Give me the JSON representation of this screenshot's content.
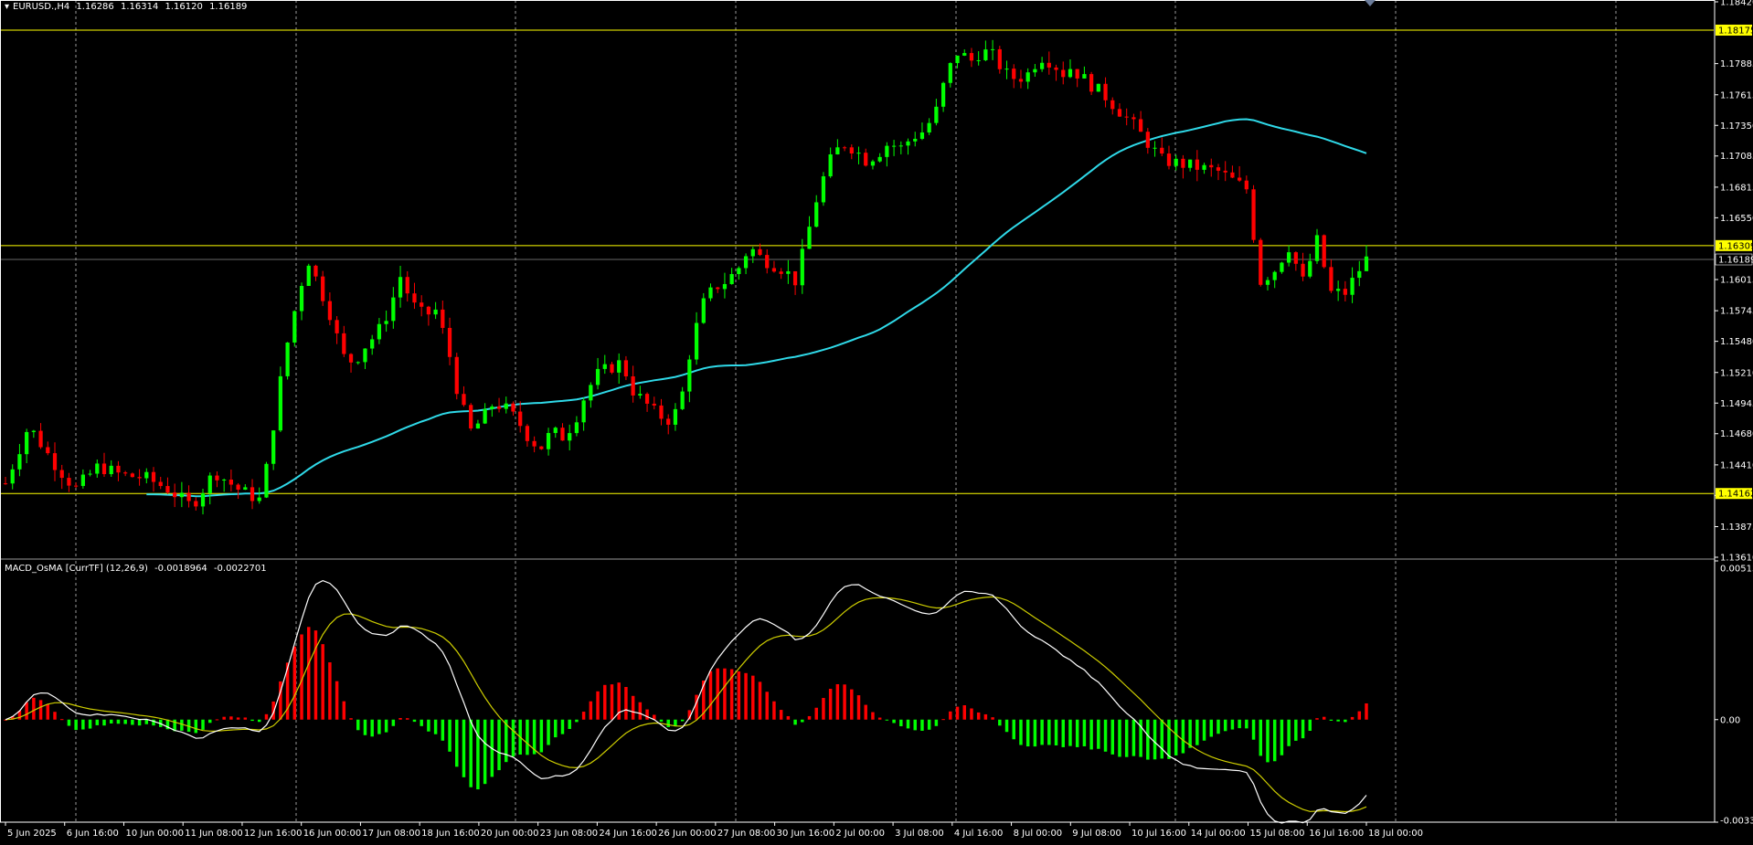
{
  "main_chart": {
    "symbol": "EURUSD.,H4",
    "ohlc": [
      "1.16286",
      "1.16314",
      "1.16120",
      "1.16189"
    ],
    "ylim": [
      1.1361,
      1.1842
    ],
    "price_scale": [
      "1.18420",
      "1.17885",
      "1.17615",
      "1.17350",
      "1.17085",
      "1.16815",
      "1.16550",
      "1.16015",
      "1.15745",
      "1.15480",
      "1.15210",
      "1.14945",
      "1.14680",
      "1.14410",
      "1.14145",
      "1.13875",
      "1.13610"
    ],
    "levels": [
      {
        "price": 1.18175,
        "label": "1.18175",
        "color": "#ffff00"
      },
      {
        "price": 1.16309,
        "label": "1.16309",
        "color": "#ffff00"
      },
      {
        "price": 1.14162,
        "label": "1.14162",
        "color": "#ffff00"
      }
    ],
    "current_price": {
      "price": 1.16189,
      "label": "1.16189"
    },
    "bull_color": "#00ff00",
    "bear_color": "#ff0000",
    "ma_color": "#2fd9e8"
  },
  "chart_data": [
    {
      "type": "candlestick",
      "bars": 194,
      "ylim": [
        1.1361,
        1.1842
      ],
      "trend_anchors_close": [
        [
          0,
          1.1425
        ],
        [
          4,
          1.1475
        ],
        [
          8,
          1.1445
        ],
        [
          12,
          1.142
        ],
        [
          16,
          1.144
        ],
        [
          20,
          1.1432
        ],
        [
          24,
          1.143
        ],
        [
          28,
          1.142
        ],
        [
          32,
          1.1405
        ],
        [
          36,
          1.1435
        ],
        [
          40,
          1.142
        ],
        [
          44,
          1.141
        ],
        [
          48,
          1.1535
        ],
        [
          50,
          1.158
        ],
        [
          52,
          1.162
        ],
        [
          54,
          1.1595
        ],
        [
          56,
          1.157
        ],
        [
          58,
          1.1535
        ],
        [
          60,
          1.153
        ],
        [
          62,
          1.1545
        ],
        [
          64,
          1.1555
        ],
        [
          66,
          1.1575
        ],
        [
          68,
          1.1605
        ],
        [
          70,
          1.158
        ],
        [
          72,
          1.157
        ],
        [
          74,
          1.1575
        ],
        [
          76,
          1.1545
        ],
        [
          78,
          1.15
        ],
        [
          80,
          1.147
        ],
        [
          82,
          1.148
        ],
        [
          84,
          1.1495
        ],
        [
          86,
          1.149
        ],
        [
          88,
          1.148
        ],
        [
          90,
          1.1465
        ],
        [
          92,
          1.1455
        ],
        [
          94,
          1.147
        ],
        [
          96,
          1.1465
        ],
        [
          98,
          1.148
        ],
        [
          100,
          1.1505
        ],
        [
          102,
          1.152
        ],
        [
          104,
          1.1525
        ],
        [
          106,
          1.153
        ],
        [
          108,
          1.1505
        ],
        [
          110,
          1.1495
        ],
        [
          112,
          1.1485
        ],
        [
          114,
          1.148
        ],
        [
          116,
          1.149
        ],
        [
          118,
          1.1545
        ],
        [
          120,
          1.158
        ],
        [
          122,
          1.1595
        ],
        [
          124,
          1.16
        ],
        [
          126,
          1.161
        ],
        [
          128,
          1.163
        ],
        [
          130,
          1.162
        ],
        [
          132,
          1.1615
        ],
        [
          134,
          1.161
        ],
        [
          136,
          1.16
        ],
        [
          138,
          1.164
        ],
        [
          140,
          1.168
        ],
        [
          142,
          1.1705
        ],
        [
          144,
          1.172
        ],
        [
          146,
          1.1715
        ],
        [
          148,
          1.1705
        ],
        [
          150,
          1.171
        ],
        [
          152,
          1.172
        ],
        [
          154,
          1.1715
        ],
        [
          156,
          1.1725
        ],
        [
          158,
          1.173
        ],
        [
          160,
          1.1745
        ],
        [
          162,
          1.178
        ],
        [
          164,
          1.18
        ],
        [
          166,
          1.179
        ],
        [
          168,
          1.18
        ],
        [
          170,
          1.1795
        ],
        [
          172,
          1.178
        ],
        [
          174,
          1.1775
        ],
        [
          176,
          1.178
        ],
        [
          178,
          1.1795
        ],
        [
          180,
          1.179
        ],
        [
          182,
          1.178
        ]
      ],
      "ma_period": 100
    },
    {
      "type": "macd_osma",
      "title": "MACD_OsMA [CurrTF] (12,26,9)",
      "values_shown": [
        "-0.0018964",
        "-0.0022701"
      ],
      "ylim": [
        -0.00332,
        0.005139
      ],
      "scale_labels": [
        "0.0051399",
        "0.00",
        "-0.003320"
      ]
    }
  ],
  "time_axis": {
    "labels": [
      "5 Jun 2025",
      "6 Jun 16:00",
      "10 Jun 00:00",
      "11 Jun 08:00",
      "12 Jun 16:00",
      "16 Jun 00:00",
      "17 Jun 08:00",
      "18 Jun 16:00",
      "20 Jun 00:00",
      "23 Jun 08:00",
      "24 Jun 16:00",
      "26 Jun 00:00",
      "27 Jun 08:00",
      "30 Jun 16:00",
      "2 Jul 00:00",
      "3 Jul 08:00",
      "4 Jul 16:00",
      "8 Jul 00:00",
      "9 Jul 08:00",
      "10 Jul 16:00",
      "14 Jul 00:00",
      "15 Jul 08:00",
      "16 Jul 16:00",
      "18 Jul 00:00"
    ]
  },
  "macd_panel": {
    "title": "MACD_OsMA [CurrTF] (12,26,9)",
    "value1": "-0.0018964",
    "value2": "-0.0022701",
    "scale_top": "0.0051399",
    "scale_zero": "0.00",
    "scale_bottom": "-0.003320",
    "macd_color": "#ffffff",
    "signal_color": "#cccc00",
    "hist_pos_color": "#ff0000",
    "hist_neg_color": "#00ff00"
  }
}
